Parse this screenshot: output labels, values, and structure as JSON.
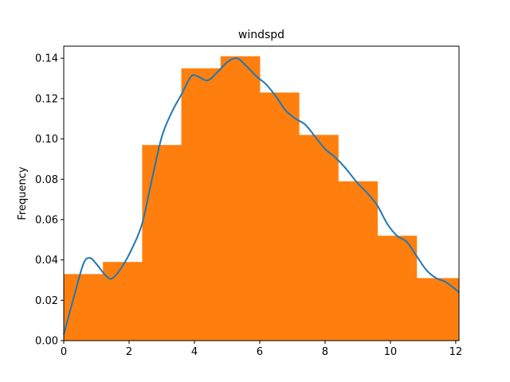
{
  "chart_data": {
    "type": "bar",
    "title": "windspd",
    "xlabel": "",
    "ylabel": "Frequency",
    "xlim": [
      0,
      12.1
    ],
    "ylim": [
      0,
      0.146
    ],
    "xticks": [
      0,
      2,
      4,
      6,
      8,
      10,
      12
    ],
    "xtick_labels": [
      "0",
      "2",
      "4",
      "6",
      "8",
      "10",
      "12"
    ],
    "yticks": [
      0.0,
      0.02,
      0.04,
      0.06,
      0.08,
      0.1,
      0.12,
      0.14
    ],
    "ytick_labels": [
      "0.00",
      "0.02",
      "0.04",
      "0.06",
      "0.08",
      "0.10",
      "0.12",
      "0.14"
    ],
    "grid": false,
    "histogram": {
      "color": "#ff7f0e",
      "bins": [
        {
          "x0": 0.0,
          "x1": 1.2,
          "value": 0.033
        },
        {
          "x0": 1.2,
          "x1": 2.4,
          "value": 0.039
        },
        {
          "x0": 2.4,
          "x1": 3.6,
          "value": 0.097
        },
        {
          "x0": 3.6,
          "x1": 4.8,
          "value": 0.135
        },
        {
          "x0": 4.8,
          "x1": 6.0,
          "value": 0.141
        },
        {
          "x0": 6.0,
          "x1": 7.2,
          "value": 0.123
        },
        {
          "x0": 7.2,
          "x1": 8.4,
          "value": 0.102
        },
        {
          "x0": 8.4,
          "x1": 9.6,
          "value": 0.079
        },
        {
          "x0": 9.6,
          "x1": 10.8,
          "value": 0.052
        },
        {
          "x0": 10.8,
          "x1": 12.1,
          "value": 0.031
        }
      ]
    },
    "kde": {
      "color": "#1f77b4",
      "x": [
        0.0,
        0.3,
        0.6,
        0.8,
        1.0,
        1.3,
        1.5,
        1.8,
        2.1,
        2.4,
        2.7,
        3.0,
        3.3,
        3.6,
        3.9,
        4.1,
        4.4,
        4.7,
        5.0,
        5.3,
        5.6,
        5.9,
        6.2,
        6.5,
        6.8,
        7.1,
        7.4,
        7.7,
        8.0,
        8.3,
        8.6,
        9.0,
        9.3,
        9.6,
        9.9,
        10.2,
        10.5,
        10.8,
        11.1,
        11.4,
        11.7,
        12.1
      ],
      "y": [
        0.003,
        0.021,
        0.038,
        0.041,
        0.038,
        0.032,
        0.031,
        0.037,
        0.046,
        0.058,
        0.08,
        0.101,
        0.113,
        0.122,
        0.131,
        0.131,
        0.129,
        0.133,
        0.138,
        0.14,
        0.136,
        0.131,
        0.127,
        0.121,
        0.114,
        0.11,
        0.107,
        0.101,
        0.095,
        0.091,
        0.086,
        0.078,
        0.073,
        0.067,
        0.058,
        0.052,
        0.049,
        0.042,
        0.035,
        0.031,
        0.029,
        0.024
      ]
    }
  }
}
